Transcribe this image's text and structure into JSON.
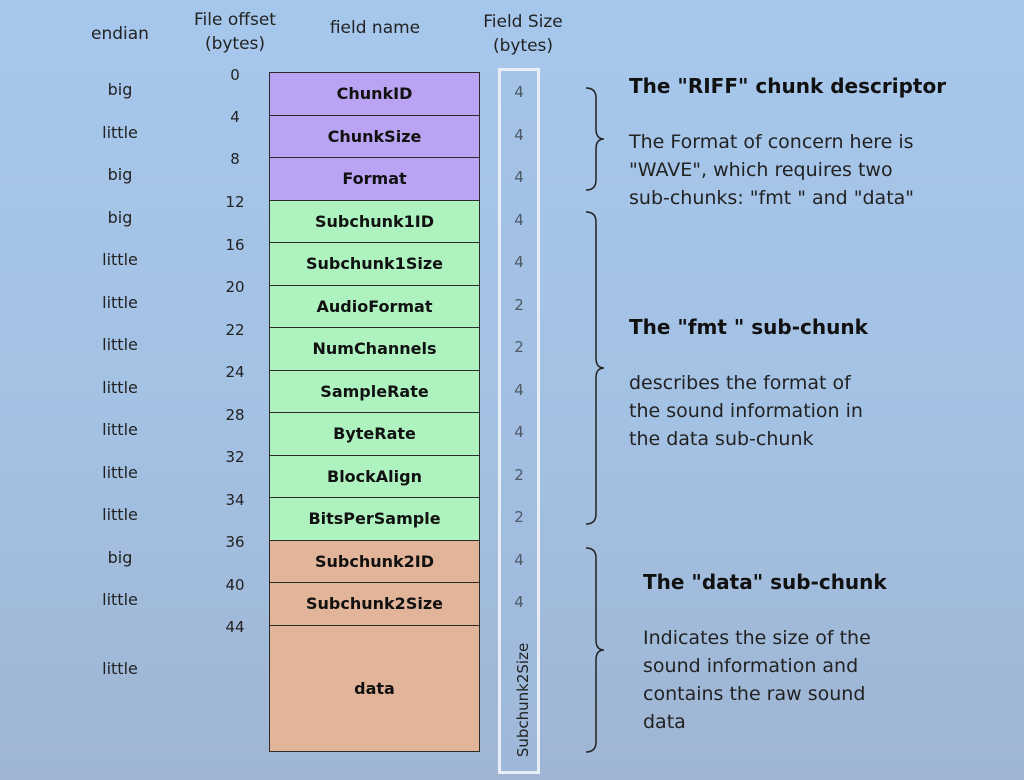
{
  "headers": {
    "endian": "endian",
    "file_offset": "File offset\n(bytes)",
    "field_name": "field name",
    "field_size": "Field Size\n(bytes)"
  },
  "offsets": [
    "0",
    "4",
    "8",
    "12",
    "16",
    "20",
    "22",
    "24",
    "28",
    "32",
    "34",
    "36",
    "40",
    "44"
  ],
  "rows": [
    {
      "endian": "big",
      "name": "ChunkID",
      "size": "4",
      "group": "riff"
    },
    {
      "endian": "little",
      "name": "ChunkSize",
      "size": "4",
      "group": "riff"
    },
    {
      "endian": "big",
      "name": "Format",
      "size": "4",
      "group": "riff"
    },
    {
      "endian": "big",
      "name": "Subchunk1ID",
      "size": "4",
      "group": "fmt"
    },
    {
      "endian": "little",
      "name": "Subchunk1Size",
      "size": "4",
      "group": "fmt"
    },
    {
      "endian": "little",
      "name": "AudioFormat",
      "size": "2",
      "group": "fmt"
    },
    {
      "endian": "little",
      "name": "NumChannels",
      "size": "2",
      "group": "fmt"
    },
    {
      "endian": "little",
      "name": "SampleRate",
      "size": "4",
      "group": "fmt"
    },
    {
      "endian": "little",
      "name": "ByteRate",
      "size": "4",
      "group": "fmt"
    },
    {
      "endian": "little",
      "name": "BlockAlign",
      "size": "2",
      "group": "fmt"
    },
    {
      "endian": "little",
      "name": "BitsPerSample",
      "size": "2",
      "group": "fmt"
    },
    {
      "endian": "big",
      "name": "Subchunk2ID",
      "size": "4",
      "group": "data"
    },
    {
      "endian": "little",
      "name": "Subchunk2Size",
      "size": "4",
      "group": "data"
    },
    {
      "endian": "little",
      "name": "data",
      "size": "Subchunk2Size",
      "group": "data"
    }
  ],
  "sections": {
    "riff": {
      "title": "The \"RIFF\" chunk descriptor",
      "desc": "The Format of concern here is\n\"WAVE\", which requires two\nsub-chunks: \"fmt \" and \"data\""
    },
    "fmt": {
      "title": "The \"fmt \" sub-chunk",
      "desc": "describes the format of\nthe sound information in\nthe data sub-chunk"
    },
    "data": {
      "title": "The \"data\" sub-chunk",
      "desc": "Indicates the size of the\nsound information and\ncontains the raw sound\ndata"
    }
  },
  "colors": {
    "riff": "#b9a3f2",
    "fmt": "#adf2bf",
    "data": "#e2b499",
    "background": "#a6c7ec"
  }
}
